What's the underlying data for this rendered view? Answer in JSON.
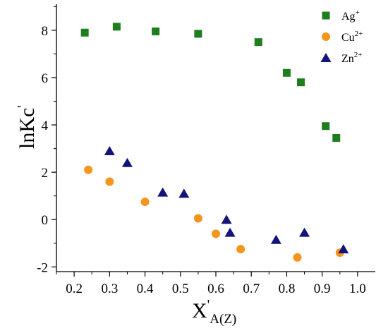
{
  "chart_data": {
    "type": "scatter",
    "title": "",
    "xlabel": {
      "main": "X",
      "prime": "'",
      "sub": "A(Z)"
    },
    "ylabel": {
      "main": "lnKc",
      "prime": "'"
    },
    "xlim": [
      0.15,
      1.05
    ],
    "ylim": [
      -2.2,
      9.1
    ],
    "xticks": [
      0.2,
      0.3,
      0.4,
      0.5,
      0.6,
      0.7,
      0.8,
      0.9,
      1.0
    ],
    "xtick_labels": [
      "0.2",
      "0.3",
      "0.4",
      "0.5",
      "0.6",
      "0.7",
      "0.8",
      "0.9",
      "1.0"
    ],
    "yticks": [
      -2,
      0,
      2,
      4,
      6,
      8
    ],
    "ytick_labels": [
      "-2",
      "0",
      "2",
      "4",
      "6",
      "8"
    ],
    "grid": false,
    "legend_position": "top-right",
    "series": [
      {
        "name": "Ag",
        "charge": "+",
        "marker": "square",
        "color": "#1e7d1e",
        "points": [
          [
            0.23,
            7.9
          ],
          [
            0.32,
            8.15
          ],
          [
            0.43,
            7.95
          ],
          [
            0.55,
            7.85
          ],
          [
            0.72,
            7.5
          ],
          [
            0.8,
            6.2
          ],
          [
            0.84,
            5.8
          ],
          [
            0.91,
            3.95
          ],
          [
            0.94,
            3.45
          ]
        ]
      },
      {
        "name": "Cu",
        "charge": "2+",
        "marker": "circle",
        "color": "#f7941d",
        "points": [
          [
            0.24,
            2.1
          ],
          [
            0.3,
            1.6
          ],
          [
            0.4,
            0.75
          ],
          [
            0.55,
            0.05
          ],
          [
            0.6,
            -0.6
          ],
          [
            0.67,
            -1.25
          ],
          [
            0.83,
            -1.6
          ],
          [
            0.95,
            -1.4
          ]
        ]
      },
      {
        "name": "Zn",
        "charge": "2+",
        "marker": "triangle",
        "color": "#13137a",
        "points": [
          [
            0.3,
            2.9
          ],
          [
            0.35,
            2.4
          ],
          [
            0.45,
            1.15
          ],
          [
            0.51,
            1.1
          ],
          [
            0.63,
            0.0
          ],
          [
            0.64,
            -0.55
          ],
          [
            0.77,
            -0.85
          ],
          [
            0.85,
            -0.55
          ],
          [
            0.96,
            -1.25
          ]
        ]
      }
    ]
  }
}
